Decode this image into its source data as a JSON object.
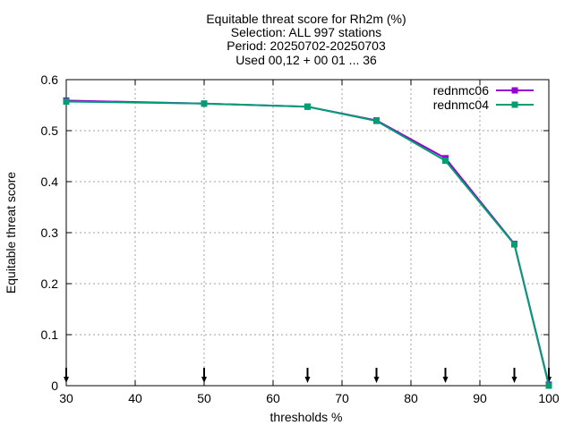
{
  "chart_data": {
    "type": "line",
    "title_lines": [
      "Equitable threat score  for Rh2m (%)",
      "Selection: ALL    997 stations",
      "Period: 20250702-20250703",
      "Used 00,12 + 00 01 ... 36"
    ],
    "xlabel": "thresholds %",
    "ylabel": "Equitable threat score",
    "xlim": [
      30,
      100
    ],
    "ylim": [
      0,
      0.6
    ],
    "x_ticks": [
      30,
      40,
      50,
      60,
      70,
      80,
      90,
      100
    ],
    "y_ticks": [
      0,
      0.1,
      0.2,
      0.3,
      0.4,
      0.5,
      0.6
    ],
    "y_tick_labels": [
      "0",
      "0.1",
      "0.2",
      "0.3",
      "0.4",
      "0.5",
      "0.6"
    ],
    "grid": true,
    "legend_position": "top-right",
    "arrow_markers_x": [
      30,
      50,
      65,
      75,
      85,
      95,
      100
    ],
    "series": [
      {
        "name": "rednmc06",
        "color": "#9400d3",
        "x": [
          30,
          50,
          65,
          75,
          85,
          95,
          100
        ],
        "y": [
          0.559,
          0.553,
          0.547,
          0.52,
          0.446,
          0.278,
          0.002
        ]
      },
      {
        "name": "rednmc04",
        "color": "#009e73",
        "x": [
          30,
          50,
          65,
          75,
          85,
          95,
          100
        ],
        "y": [
          0.557,
          0.553,
          0.547,
          0.519,
          0.441,
          0.277,
          0.0
        ]
      }
    ]
  }
}
